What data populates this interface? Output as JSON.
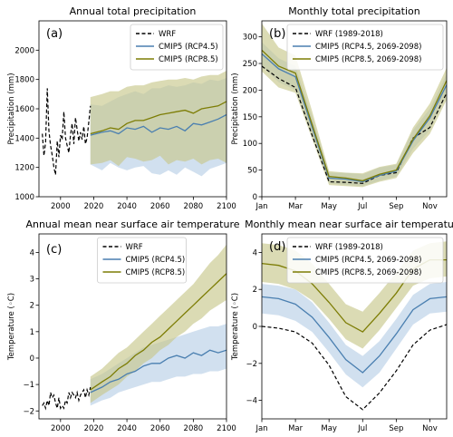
{
  "chart_data": [
    {
      "id": "a",
      "type": "line",
      "panel_label": "(a)",
      "title": "Annual total precipitation",
      "xlabel": "",
      "ylabel": "Precipitation (mm)",
      "xlim": [
        1987,
        2100
      ],
      "ylim": [
        1000,
        2200
      ],
      "xticks": [
        2000,
        2020,
        2040,
        2060,
        2080,
        2100
      ],
      "xtick_labels": [
        "2000",
        "2020",
        "2040",
        "2060",
        "2080",
        "2100"
      ],
      "yticks": [
        1000,
        1200,
        1400,
        1600,
        1800,
        2000
      ],
      "ytick_labels": [
        "1000",
        "1200",
        "1400",
        "1600",
        "1800",
        "2000"
      ],
      "legend_position": "top-right",
      "series": [
        {
          "name": "WRF",
          "style": "dashed",
          "color": "#000000",
          "x": [
            1989,
            1990,
            1991,
            1992,
            1993,
            1994,
            1995,
            1996,
            1997,
            1998,
            1999,
            2000,
            2001,
            2002,
            2003,
            2004,
            2005,
            2006,
            2007,
            2008,
            2009,
            2010,
            2011,
            2012,
            2013,
            2014,
            2015,
            2016,
            2017,
            2018
          ],
          "y": [
            1430,
            1280,
            1370,
            1740,
            1450,
            1350,
            1280,
            1200,
            1150,
            1380,
            1270,
            1420,
            1390,
            1580,
            1400,
            1350,
            1300,
            1420,
            1500,
            1360,
            1540,
            1460,
            1380,
            1440,
            1390,
            1480,
            1360,
            1400,
            1510,
            1620
          ]
        },
        {
          "name": "CMIP5 (RCP4.5)",
          "style": "solid",
          "color": "#4a7fb0",
          "band_color": "#b8cfe6",
          "x": [
            2018,
            2025,
            2030,
            2035,
            2040,
            2045,
            2050,
            2055,
            2060,
            2065,
            2070,
            2075,
            2080,
            2085,
            2090,
            2095,
            2100
          ],
          "y": [
            1420,
            1440,
            1450,
            1430,
            1470,
            1460,
            1480,
            1440,
            1470,
            1460,
            1480,
            1450,
            1500,
            1490,
            1510,
            1530,
            1560
          ],
          "low": [
            1220,
            1180,
            1230,
            1200,
            1180,
            1200,
            1210,
            1160,
            1150,
            1180,
            1150,
            1200,
            1170,
            1140,
            1190,
            1210,
            1230
          ],
          "high": [
            1630,
            1620,
            1650,
            1680,
            1700,
            1720,
            1700,
            1740,
            1740,
            1760,
            1750,
            1760,
            1780,
            1770,
            1800,
            1790,
            1810
          ]
        },
        {
          "name": "CMIP5 (RCP8.5)",
          "style": "solid",
          "color": "#7d7d05",
          "band_color": "#c8c88c",
          "x": [
            2018,
            2025,
            2030,
            2035,
            2040,
            2045,
            2050,
            2055,
            2060,
            2065,
            2070,
            2075,
            2080,
            2085,
            2090,
            2095,
            2100
          ],
          "y": [
            1430,
            1450,
            1470,
            1460,
            1500,
            1520,
            1520,
            1540,
            1560,
            1570,
            1580,
            1590,
            1570,
            1600,
            1610,
            1620,
            1650
          ],
          "low": [
            1220,
            1230,
            1250,
            1210,
            1270,
            1260,
            1240,
            1250,
            1280,
            1220,
            1250,
            1240,
            1260,
            1220,
            1250,
            1260,
            1230
          ],
          "high": [
            1680,
            1700,
            1720,
            1720,
            1750,
            1760,
            1760,
            1780,
            1790,
            1800,
            1800,
            1810,
            1800,
            1820,
            1830,
            1830,
            1860
          ]
        }
      ]
    },
    {
      "id": "b",
      "type": "line",
      "panel_label": "(b)",
      "title": "Monthly total precipitation",
      "xlabel": "",
      "ylabel": "Precipitation (mm)",
      "xlim": [
        1,
        12
      ],
      "ylim": [
        0,
        330
      ],
      "xticks": [
        1,
        3,
        5,
        7,
        9,
        11
      ],
      "xtick_labels": [
        "Jan",
        "Mar",
        "May",
        "Jul",
        "Sep",
        "Nov"
      ],
      "yticks": [
        0,
        50,
        100,
        150,
        200,
        250,
        300
      ],
      "ytick_labels": [
        "0",
        "50",
        "100",
        "150",
        "200",
        "250",
        "300"
      ],
      "legend_position": "top-right",
      "series": [
        {
          "name": "WRF (1989-2018)",
          "style": "dashed",
          "color": "#000000",
          "x": [
            1,
            2,
            3,
            4,
            5,
            6,
            7,
            8,
            9,
            10,
            11,
            12
          ],
          "y": [
            245,
            222,
            205,
            115,
            28,
            27,
            25,
            40,
            45,
            110,
            130,
            195
          ]
        },
        {
          "name": "CMIP5 (RCP4.5, 2069-2098)",
          "style": "solid",
          "color": "#4a7fb0",
          "band_color": "#b8cfe6",
          "x": [
            1,
            2,
            3,
            4,
            5,
            6,
            7,
            8,
            9,
            10,
            11,
            12
          ],
          "y": [
            268,
            240,
            225,
            130,
            35,
            33,
            28,
            40,
            48,
            105,
            148,
            210
          ],
          "low": [
            245,
            215,
            200,
            112,
            25,
            22,
            20,
            30,
            38,
            90,
            125,
            190
          ],
          "high": [
            290,
            260,
            245,
            150,
            45,
            45,
            42,
            55,
            60,
            125,
            165,
            230
          ]
        },
        {
          "name": "CMIP5 (RCP8.5, 2069-2098)",
          "style": "solid",
          "color": "#7d7d05",
          "band_color": "#c8c88c",
          "x": [
            1,
            2,
            3,
            4,
            5,
            6,
            7,
            8,
            9,
            10,
            11,
            12
          ],
          "y": [
            275,
            245,
            232,
            135,
            38,
            35,
            30,
            42,
            50,
            108,
            152,
            218
          ],
          "low": [
            235,
            205,
            195,
            108,
            22,
            20,
            18,
            28,
            35,
            82,
            118,
            182
          ],
          "high": [
            325,
            280,
            265,
            160,
            48,
            45,
            44,
            56,
            62,
            130,
            175,
            242
          ]
        }
      ]
    },
    {
      "id": "c",
      "type": "line",
      "panel_label": "(c)",
      "title": "Annual mean near surface air temperature",
      "xlabel": "",
      "ylabel": "Temperature (◦C)",
      "xlim": [
        1987,
        2100
      ],
      "ylim": [
        -2.3,
        4.7
      ],
      "xticks": [
        2000,
        2020,
        2040,
        2060,
        2080,
        2100
      ],
      "xtick_labels": [
        "2000",
        "2020",
        "2040",
        "2060",
        "2080",
        "2100"
      ],
      "yticks": [
        -2,
        -1,
        0,
        1,
        2,
        3,
        4
      ],
      "ytick_labels": [
        "−2",
        "−1",
        "0",
        "1",
        "2",
        "3",
        "4"
      ],
      "legend_position": "top-center",
      "series": [
        {
          "name": "WRF",
          "style": "dashed",
          "color": "#000000",
          "x": [
            1989,
            1990,
            1991,
            1992,
            1993,
            1994,
            1995,
            1996,
            1997,
            1998,
            1999,
            2000,
            2001,
            2002,
            2003,
            2004,
            2005,
            2006,
            2007,
            2008,
            2009,
            2010,
            2011,
            2012,
            2013,
            2014,
            2015,
            2016,
            2017,
            2018
          ],
          "y": [
            -1.8,
            -1.7,
            -1.9,
            -1.6,
            -1.8,
            -1.3,
            -1.5,
            -1.4,
            -1.7,
            -1.9,
            -1.5,
            -1.9,
            -1.8,
            -1.9,
            -1.6,
            -1.7,
            -1.3,
            -1.5,
            -1.3,
            -1.4,
            -1.5,
            -1.3,
            -1.6,
            -1.4,
            -1.3,
            -1.2,
            -1.5,
            -1.2,
            -1.4,
            -1.1
          ]
        },
        {
          "name": "CMIP5 (RCP4.5)",
          "style": "solid",
          "color": "#4a7fb0",
          "band_color": "#b8cfe6",
          "x": [
            2018,
            2025,
            2030,
            2035,
            2040,
            2045,
            2050,
            2055,
            2060,
            2065,
            2070,
            2075,
            2080,
            2085,
            2090,
            2095,
            2100
          ],
          "y": [
            -1.3,
            -1.1,
            -0.9,
            -0.8,
            -0.6,
            -0.5,
            -0.3,
            -0.2,
            -0.2,
            0.0,
            0.1,
            0.0,
            0.2,
            0.1,
            0.3,
            0.2,
            0.3
          ],
          "low": [
            -1.8,
            -1.6,
            -1.5,
            -1.3,
            -1.2,
            -1.1,
            -1.0,
            -0.9,
            -0.9,
            -0.8,
            -0.7,
            -0.7,
            -0.6,
            -0.6,
            -0.5,
            -0.5,
            -0.4
          ],
          "high": [
            -0.8,
            -0.6,
            -0.4,
            -0.2,
            0.0,
            0.2,
            0.4,
            0.5,
            0.6,
            0.7,
            0.8,
            0.9,
            1.0,
            1.1,
            1.2,
            1.2,
            1.3
          ]
        },
        {
          "name": "CMIP5 (RCP8.5)",
          "style": "solid",
          "color": "#7d7d05",
          "band_color": "#c8c88c",
          "x": [
            2018,
            2025,
            2030,
            2035,
            2040,
            2045,
            2050,
            2055,
            2060,
            2065,
            2070,
            2075,
            2080,
            2085,
            2090,
            2095,
            2100
          ],
          "y": [
            -1.2,
            -0.9,
            -0.7,
            -0.4,
            -0.2,
            0.1,
            0.3,
            0.6,
            0.8,
            1.1,
            1.4,
            1.7,
            2.0,
            2.3,
            2.6,
            2.9,
            3.2
          ],
          "low": [
            -1.7,
            -1.4,
            -1.2,
            -1.0,
            -0.7,
            -0.5,
            -0.2,
            0.0,
            0.3,
            0.5,
            0.8,
            1.0,
            1.3,
            1.5,
            1.8,
            2.0,
            2.2
          ],
          "high": [
            -0.7,
            -0.4,
            -0.1,
            0.2,
            0.4,
            0.7,
            1.0,
            1.3,
            1.6,
            1.9,
            2.2,
            2.5,
            2.8,
            3.2,
            3.6,
            3.9,
            4.3
          ]
        }
      ]
    },
    {
      "id": "d",
      "type": "line",
      "panel_label": "(d)",
      "title": "Monthly mean near surface air temperature",
      "xlabel": "",
      "ylabel": "Temperature (◦C)",
      "xlim": [
        1,
        12
      ],
      "ylim": [
        -5,
        5
      ],
      "xticks": [
        1,
        3,
        5,
        7,
        9,
        11
      ],
      "xtick_labels": [
        "Jan",
        "Mar",
        "May",
        "Jul",
        "Sep",
        "Nov"
      ],
      "yticks": [
        -4,
        -2,
        0,
        2,
        4
      ],
      "ytick_labels": [
        "−4",
        "−2",
        "0",
        "2",
        "4"
      ],
      "legend_position": "top-right",
      "series": [
        {
          "name": "WRF (1989-2018)",
          "style": "dashed",
          "color": "#000000",
          "x": [
            1,
            2,
            3,
            4,
            5,
            6,
            7,
            8,
            9,
            10,
            11,
            12
          ],
          "y": [
            0.0,
            -0.1,
            -0.3,
            -0.9,
            -2.1,
            -3.8,
            -4.5,
            -3.6,
            -2.4,
            -1.0,
            -0.2,
            0.1
          ]
        },
        {
          "name": "CMIP5 (RCP4.5, 2069-2098)",
          "style": "solid",
          "color": "#4a7fb0",
          "band_color": "#b8cfe6",
          "x": [
            1,
            2,
            3,
            4,
            5,
            6,
            7,
            8,
            9,
            10,
            11,
            12
          ],
          "y": [
            1.6,
            1.5,
            1.2,
            0.5,
            -0.6,
            -1.8,
            -2.5,
            -1.6,
            -0.4,
            0.9,
            1.5,
            1.6
          ],
          "low": [
            0.7,
            0.6,
            0.3,
            -0.3,
            -1.4,
            -2.6,
            -3.3,
            -2.5,
            -1.2,
            0.1,
            0.7,
            0.8
          ],
          "high": [
            2.3,
            2.2,
            2.0,
            1.3,
            0.2,
            -1.0,
            -1.6,
            -0.8,
            0.4,
            1.7,
            2.3,
            2.4
          ]
        },
        {
          "name": "CMIP5 (RCP8.5, 2069-2098)",
          "style": "solid",
          "color": "#7d7d05",
          "band_color": "#c8c88c",
          "x": [
            1,
            2,
            3,
            4,
            5,
            6,
            7,
            8,
            9,
            10,
            11,
            12
          ],
          "y": [
            3.4,
            3.3,
            3.0,
            2.3,
            1.3,
            0.2,
            -0.3,
            0.7,
            1.8,
            3.1,
            3.6,
            3.6
          ],
          "low": [
            2.4,
            2.3,
            2.0,
            1.4,
            0.4,
            -0.7,
            -1.2,
            -0.2,
            1.0,
            2.2,
            2.6,
            2.7
          ],
          "high": [
            4.5,
            4.4,
            4.1,
            3.4,
            2.3,
            1.2,
            0.8,
            1.8,
            2.9,
            4.1,
            4.5,
            4.6
          ]
        }
      ]
    }
  ]
}
